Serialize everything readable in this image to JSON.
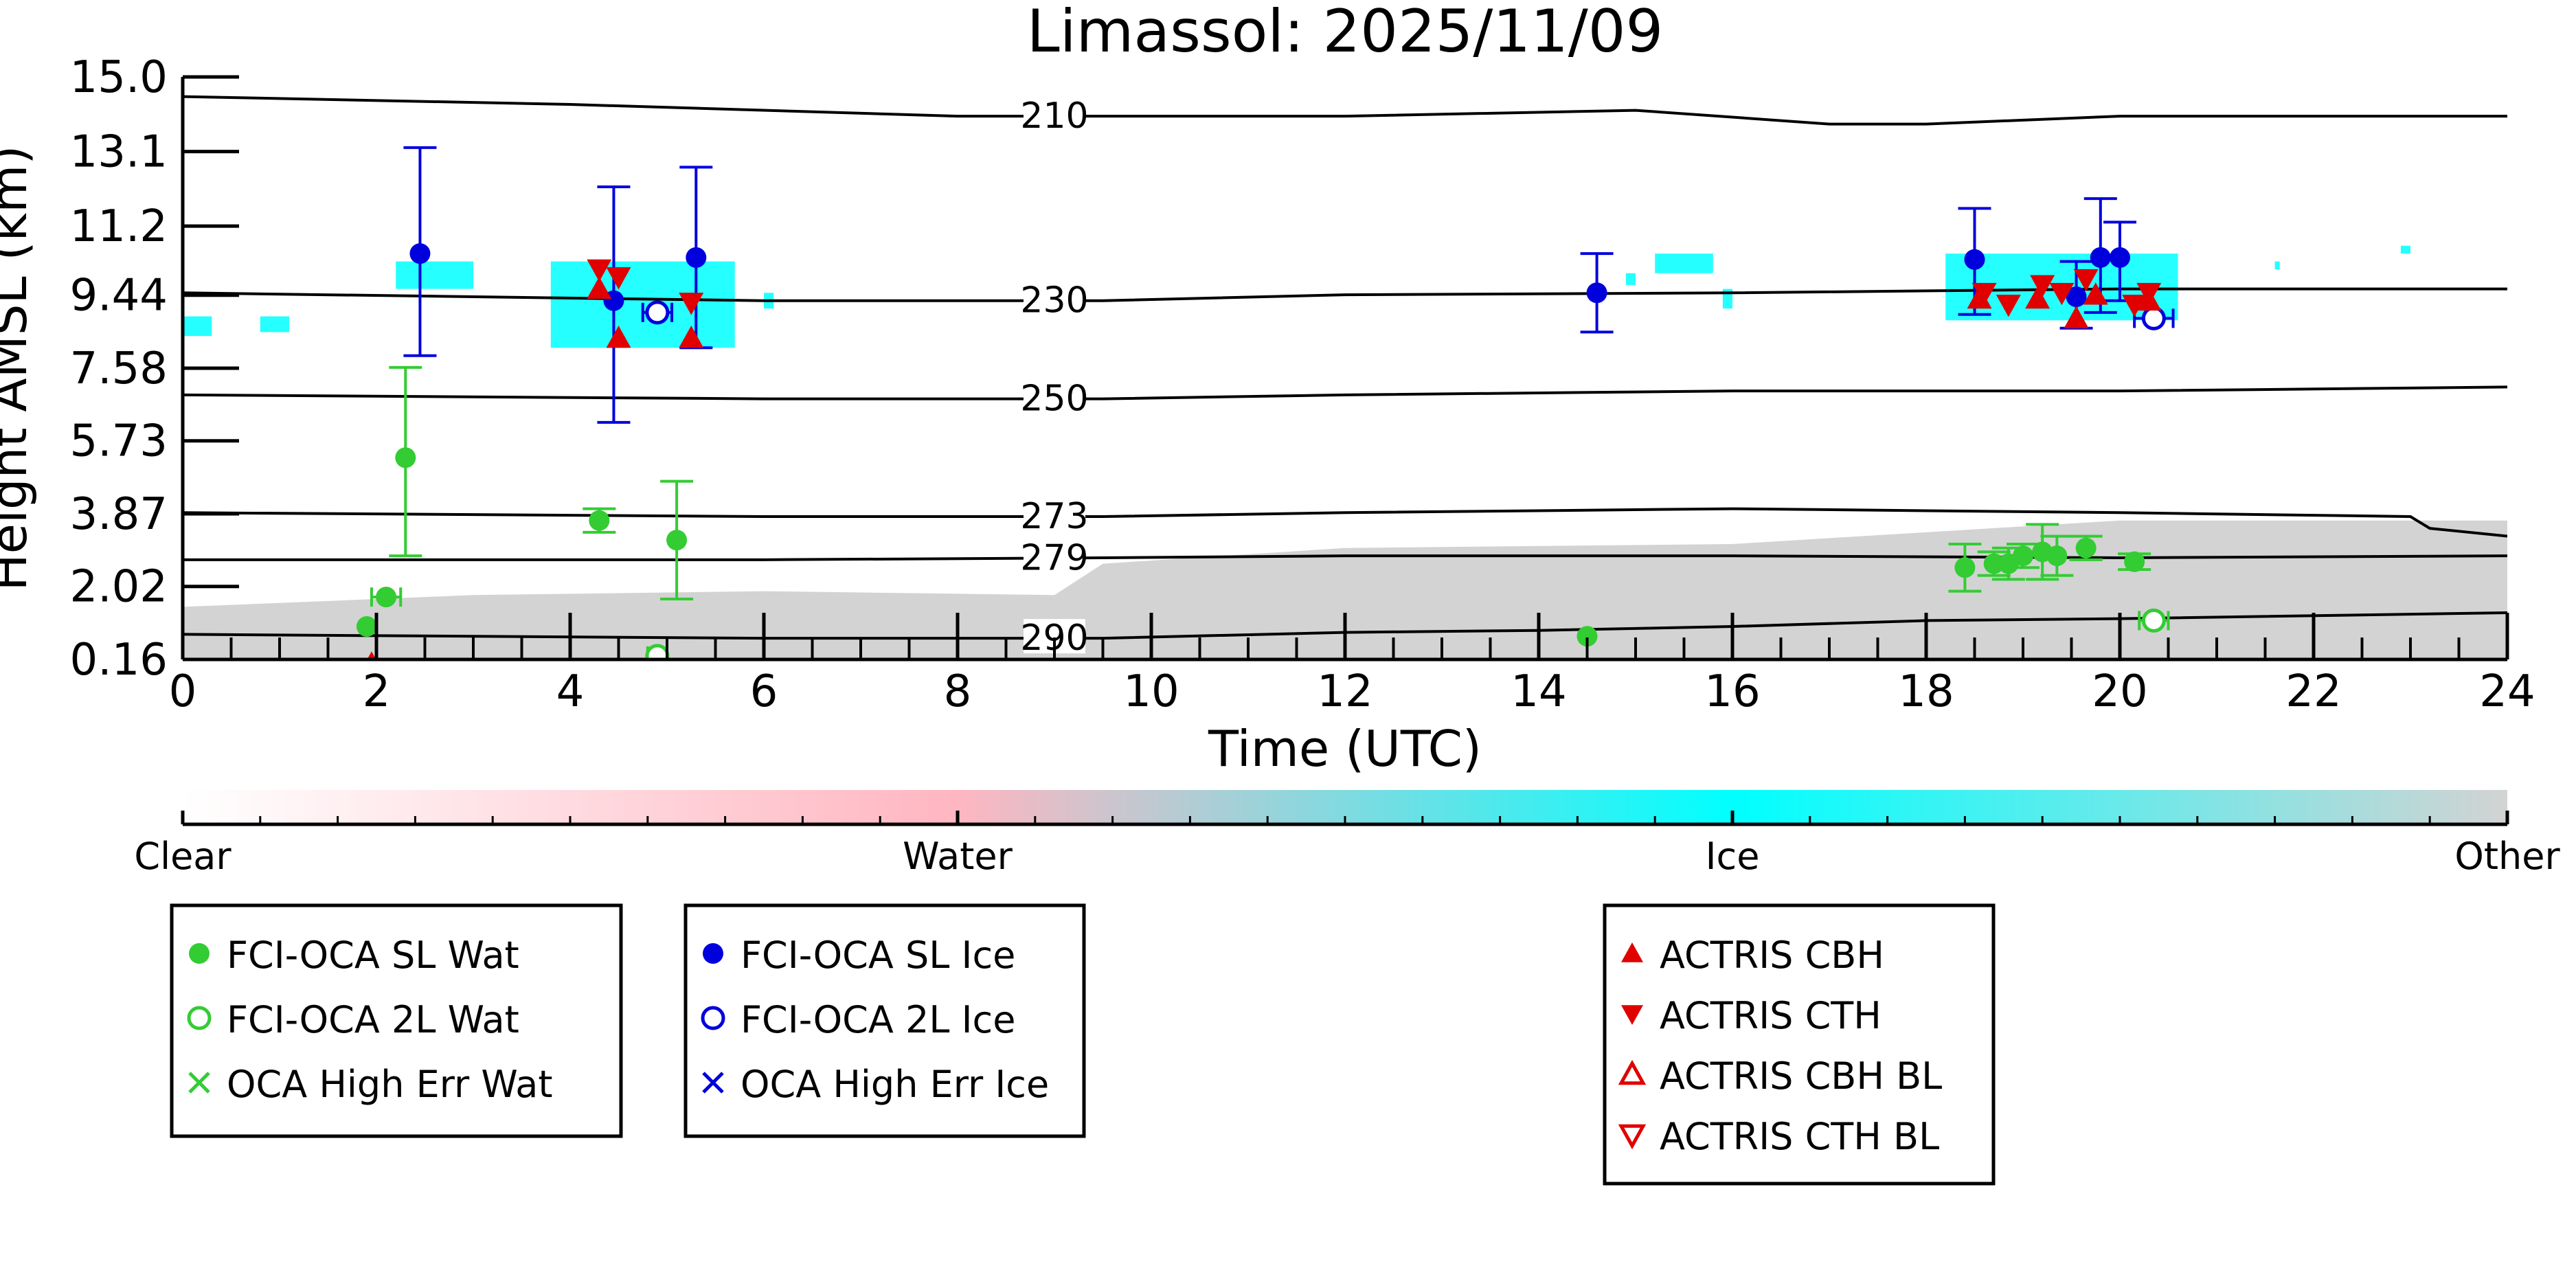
{
  "chart_data": {
    "type": "scatter",
    "title": "Limassol: 2025/11/09",
    "xlabel": "Time (UTC)",
    "ylabel": "Height AMSL (km)",
    "xlim": [
      0,
      24
    ],
    "ylim": [
      0.16,
      15.0
    ],
    "xticks": [
      0,
      2,
      4,
      6,
      8,
      10,
      12,
      14,
      16,
      18,
      20,
      22,
      24
    ],
    "yticks": [
      0.16,
      2.02,
      3.87,
      5.73,
      7.58,
      9.44,
      11.2,
      13.1,
      15.0
    ],
    "ytick_labels": [
      "0.16",
      "2.02",
      "3.87",
      "5.73",
      "7.58",
      "9.44",
      "11.2",
      "13.1",
      "15.0"
    ],
    "grid": false,
    "temperature_contours": [
      {
        "label": "210",
        "x": [
          0,
          4,
          8,
          12,
          15,
          17,
          18,
          20,
          24
        ],
        "y": [
          14.5,
          14.3,
          14.0,
          14.0,
          14.15,
          13.8,
          13.8,
          14.0,
          14.0
        ]
      },
      {
        "label": "230",
        "x": [
          0,
          6,
          9.5,
          12,
          16,
          20,
          24
        ],
        "y": [
          9.5,
          9.3,
          9.3,
          9.45,
          9.5,
          9.6,
          9.6
        ]
      },
      {
        "label": "250",
        "x": [
          0,
          6,
          9.5,
          12,
          16,
          20,
          24
        ],
        "y": [
          6.9,
          6.8,
          6.8,
          6.9,
          7.0,
          7.0,
          7.1
        ]
      },
      {
        "label": "273",
        "x": [
          0,
          6,
          9.5,
          12,
          16,
          20,
          23,
          23.2,
          24
        ],
        "y": [
          3.9,
          3.8,
          3.8,
          3.9,
          4.0,
          3.9,
          3.8,
          3.5,
          3.3
        ]
      },
      {
        "label": "279",
        "x": [
          0,
          6,
          9.5,
          12,
          16,
          20,
          24
        ],
        "y": [
          2.7,
          2.7,
          2.75,
          2.8,
          2.8,
          2.75,
          2.8
        ]
      },
      {
        "label": "290",
        "x": [
          0,
          6,
          9.5,
          12,
          14,
          16,
          18,
          20,
          24
        ],
        "y": [
          0.8,
          0.7,
          0.7,
          0.85,
          0.9,
          1.0,
          1.15,
          1.2,
          1.35
        ]
      }
    ],
    "classification_regions": [
      {
        "class": "Other",
        "x": [
          0,
          3,
          6,
          9,
          9.5,
          12,
          16,
          18,
          20,
          22,
          24
        ],
        "ymax": [
          1.5,
          1.8,
          1.9,
          1.8,
          2.6,
          3.0,
          3.1,
          3.4,
          3.7,
          3.7,
          3.7
        ]
      },
      {
        "class": "Ice",
        "patches": [
          [
            0,
            0.3,
            8.4,
            8.9
          ],
          [
            0.8,
            1.1,
            8.5,
            8.9
          ],
          [
            2.2,
            3.0,
            9.6,
            10.3
          ],
          [
            3.8,
            5.7,
            8.1,
            10.3
          ],
          [
            6.0,
            6.1,
            9.1,
            9.5
          ],
          [
            14.9,
            15.0,
            9.7,
            10.0
          ],
          [
            15.2,
            15.8,
            10.0,
            10.5
          ],
          [
            15.9,
            16.0,
            9.1,
            9.6
          ],
          [
            18.2,
            20.6,
            8.8,
            10.5
          ],
          [
            21.6,
            21.65,
            10.1,
            10.3
          ],
          [
            22.9,
            23.0,
            10.5,
            10.7
          ]
        ]
      }
    ],
    "colorbar": {
      "ticks": [
        "Clear",
        "Water",
        "Ice",
        "Other"
      ],
      "colors": [
        "#ffffff",
        "#ffb6c1",
        "#00ffff",
        "#d3d3d3"
      ]
    },
    "series": [
      {
        "name": "FCI-OCA SL Wat",
        "marker": "filled-circle",
        "color": "#33cc33",
        "points": [
          {
            "x": 1.9,
            "y": 1.0
          },
          {
            "x": 2.1,
            "y": 1.75,
            "xerr": 0.15
          },
          {
            "x": 2.3,
            "y": 5.3,
            "yerr": [
              2.5,
              2.3
            ]
          },
          {
            "x": 4.3,
            "y": 3.7,
            "yerr": [
              0.3,
              0.3
            ]
          },
          {
            "x": 5.1,
            "y": 3.2,
            "yerr": [
              1.5,
              1.5
            ]
          },
          {
            "x": 14.5,
            "y": 0.75
          },
          {
            "x": 18.4,
            "y": 2.5,
            "yerr": [
              0.6,
              0.6
            ]
          },
          {
            "x": 18.7,
            "y": 2.6,
            "yerr": [
              0.3,
              0.3
            ]
          },
          {
            "x": 18.85,
            "y": 2.6,
            "yerr": [
              0.4,
              0.4
            ]
          },
          {
            "x": 19.0,
            "y": 2.8,
            "yerr": [
              0.3,
              0.3
            ]
          },
          {
            "x": 19.2,
            "y": 2.9,
            "yerr": [
              0.7,
              0.7
            ]
          },
          {
            "x": 19.35,
            "y": 2.8,
            "yerr": [
              0.5,
              0.5
            ]
          },
          {
            "x": 19.65,
            "y": 3.0,
            "yerr": [
              0.3,
              0.3
            ]
          },
          {
            "x": 20.15,
            "y": 2.65,
            "yerr": [
              0.2,
              0.2
            ]
          }
        ]
      },
      {
        "name": "FCI-OCA 2L Wat",
        "marker": "open-circle",
        "color": "#33cc33",
        "points": [
          {
            "x": 4.9,
            "y": 0.25,
            "xerr": 0.1
          },
          {
            "x": 20.35,
            "y": 1.15,
            "xerr": 0.15
          }
        ]
      },
      {
        "name": "OCA High Err Wat",
        "marker": "x",
        "color": "#33cc33",
        "points": []
      },
      {
        "name": "FCI-OCA SL Ice",
        "marker": "filled-circle",
        "color": "#0000dd",
        "points": [
          {
            "x": 2.45,
            "y": 10.5,
            "yerr": [
              2.6,
              2.7
            ]
          },
          {
            "x": 4.45,
            "y": 9.3,
            "yerr": [
              3.1,
              2.9
            ]
          },
          {
            "x": 5.3,
            "y": 10.4,
            "yerr": [
              2.3,
              2.3
            ]
          },
          {
            "x": 14.6,
            "y": 9.5,
            "yerr": [
              1.0,
              1.0
            ]
          },
          {
            "x": 18.5,
            "y": 10.35,
            "yerr": [
              1.4,
              1.3
            ]
          },
          {
            "x": 19.55,
            "y": 9.4,
            "yerr": [
              0.8,
              0.9
            ]
          },
          {
            "x": 19.8,
            "y": 10.4,
            "yerr": [
              1.4,
              1.5
            ]
          },
          {
            "x": 20.0,
            "y": 10.4,
            "yerr": [
              1.1,
              0.9
            ]
          }
        ]
      },
      {
        "name": "FCI-OCA 2L Ice",
        "marker": "open-circle",
        "color": "#0000dd",
        "points": [
          {
            "x": 4.9,
            "y": 9.0,
            "xerr": 0.15
          },
          {
            "x": 20.35,
            "y": 8.85,
            "xerr": 0.2
          }
        ]
      },
      {
        "name": "OCA High Err Ice",
        "marker": "x",
        "color": "#0000dd",
        "points": []
      },
      {
        "name": "ACTRIS CBH",
        "marker": "triangle-up",
        "color": "#e00000",
        "points": [
          {
            "x": 1.95,
            "y": 0.05
          },
          {
            "x": 4.3,
            "y": 9.6
          },
          {
            "x": 4.5,
            "y": 8.35
          },
          {
            "x": 5.25,
            "y": 8.35
          },
          {
            "x": 18.55,
            "y": 9.35
          },
          {
            "x": 19.15,
            "y": 9.35
          },
          {
            "x": 19.55,
            "y": 8.85
          },
          {
            "x": 19.75,
            "y": 9.45
          },
          {
            "x": 20.3,
            "y": 9.3
          }
        ]
      },
      {
        "name": "ACTRIS CTH",
        "marker": "triangle-down",
        "color": "#e00000",
        "points": [
          {
            "x": 4.3,
            "y": 10.1
          },
          {
            "x": 4.5,
            "y": 9.9
          },
          {
            "x": 5.25,
            "y": 9.25
          },
          {
            "x": 18.6,
            "y": 9.5
          },
          {
            "x": 18.85,
            "y": 9.2
          },
          {
            "x": 19.2,
            "y": 9.7
          },
          {
            "x": 19.4,
            "y": 9.5
          },
          {
            "x": 19.65,
            "y": 9.85
          },
          {
            "x": 20.15,
            "y": 9.2
          },
          {
            "x": 20.3,
            "y": 9.5
          }
        ]
      },
      {
        "name": "ACTRIS CBH BL",
        "marker": "open-triangle-up",
        "color": "#e00000",
        "points": []
      },
      {
        "name": "ACTRIS CTH BL",
        "marker": "open-triangle-down",
        "color": "#e00000",
        "points": []
      }
    ],
    "legend": [
      {
        "position": "bottom-left",
        "entries": [
          "FCI-OCA SL Wat",
          "FCI-OCA 2L Wat",
          "OCA High Err Wat"
        ]
      },
      {
        "position": "bottom-center-left",
        "entries": [
          "FCI-OCA SL Ice",
          "FCI-OCA 2L Ice",
          "OCA High Err Ice"
        ]
      },
      {
        "position": "bottom-center-right",
        "entries": [
          "ACTRIS CBH",
          "ACTRIS CTH",
          "ACTRIS CBH BL",
          "ACTRIS CTH BL"
        ]
      }
    ]
  }
}
